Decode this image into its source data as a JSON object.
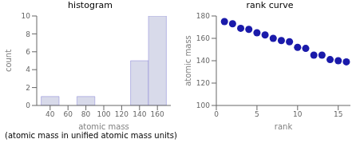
{
  "chart_data": [
    {
      "type": "histogram",
      "title": "histogram",
      "x_label": "atomic mass",
      "y_label": "count",
      "bins": [
        30,
        50,
        70,
        90,
        110,
        130,
        150,
        170
      ],
      "values": [
        1,
        0,
        1,
        0,
        0,
        5,
        10
      ],
      "color": "#d8daea",
      "xlim": [
        25,
        175
      ],
      "xticks": [
        40,
        60,
        80,
        100,
        120,
        140,
        160
      ],
      "ylim": [
        0,
        10
      ],
      "yticks": [
        0,
        2,
        4,
        6,
        8,
        10
      ],
      "grid": false
    },
    {
      "type": "scatter",
      "title": "rank curve",
      "x_label": "rank",
      "y_label": "atomic mass",
      "x": [
        1,
        2,
        3,
        4,
        5,
        6,
        7,
        8,
        9,
        10,
        11,
        12,
        13,
        14,
        15,
        16
      ],
      "values": [
        175,
        173,
        169,
        168,
        165,
        163,
        160,
        158,
        157,
        152,
        151,
        145,
        145,
        141,
        140,
        139
      ],
      "color": "#1a1aaa",
      "marker": "circle",
      "xlim": [
        0,
        16.5
      ],
      "xticks": [
        0,
        5,
        10,
        15
      ],
      "ylim": [
        100,
        180
      ],
      "yticks": [
        100,
        120,
        140,
        160,
        180
      ],
      "grid": false
    }
  ],
  "caption": "(atomic mass in unified atomic mass units)"
}
